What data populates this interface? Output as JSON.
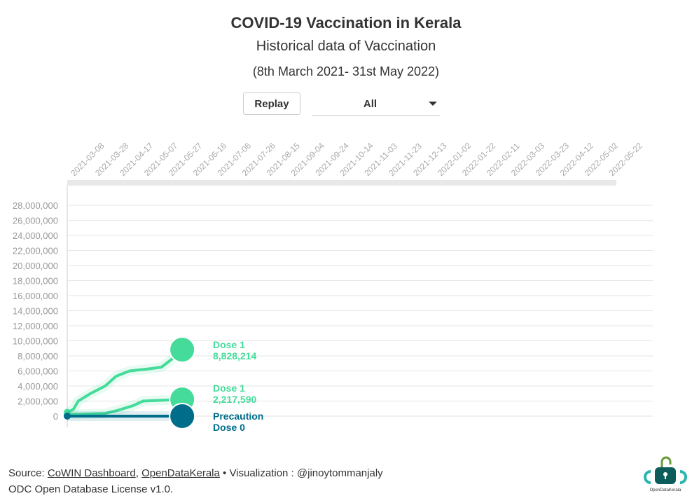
{
  "header": {
    "title": "COVID-19 Vaccination in Kerala",
    "subtitle": "Historical data of Vaccination",
    "range": "(8th March 2021- 31st May 2022)"
  },
  "controls": {
    "replay_label": "Replay",
    "select_value": "All"
  },
  "chart_data": {
    "type": "line",
    "xlim": [
      "2021-03-08",
      "2022-05-31"
    ],
    "x_ticks": [
      "2021-03-08",
      "2021-03-28",
      "2021-04-17",
      "2021-05-07",
      "2021-05-27",
      "2021-06-16",
      "2021-07-06",
      "2021-07-26",
      "2021-08-15",
      "2021-09-04",
      "2021-09-24",
      "2021-10-14",
      "2021-11-03",
      "2021-11-23",
      "2021-12-13",
      "2022-01-02",
      "2022-01-22",
      "2022-02-11",
      "2022-03-03",
      "2022-03-23",
      "2022-04-12",
      "2022-05-02",
      "2022-05-22"
    ],
    "ylim": [
      0,
      28000000
    ],
    "y_ticks": [
      "0",
      "2,000,000",
      "4,000,000",
      "6,000,000",
      "8,000,000",
      "10,000,000",
      "12,000,000",
      "14,000,000",
      "16,000,000",
      "18,000,000",
      "20,000,000",
      "22,000,000",
      "24,000,000",
      "26,000,000",
      "28,000,000"
    ],
    "grid": true,
    "series": [
      {
        "name": "Dose 1",
        "value_label": "8,828,214",
        "color": "#45db9a",
        "points": [
          [
            "2021-03-08",
            500000
          ],
          [
            "2021-03-13",
            900000
          ],
          [
            "2021-03-17",
            2000000
          ],
          [
            "2021-03-27",
            3000000
          ],
          [
            "2021-04-08",
            4000000
          ],
          [
            "2021-04-17",
            5300000
          ],
          [
            "2021-04-28",
            6000000
          ],
          [
            "2021-05-15",
            6300000
          ],
          [
            "2021-05-24",
            6500000
          ],
          [
            "2021-06-01",
            7500000
          ],
          [
            "2021-06-10",
            8828214
          ]
        ]
      },
      {
        "name": "Dose 1",
        "value_label": "2,217,590",
        "color": "#45db9a",
        "points": [
          [
            "2021-03-08",
            200000
          ],
          [
            "2021-04-08",
            350000
          ],
          [
            "2021-04-19",
            800000
          ],
          [
            "2021-05-01",
            1400000
          ],
          [
            "2021-05-09",
            2000000
          ],
          [
            "2021-06-10",
            2217590
          ]
        ]
      },
      {
        "name": "Precaution",
        "value_label": "Dose 0",
        "color": "#006d8a",
        "points": [
          [
            "2021-03-08",
            0
          ],
          [
            "2021-06-10",
            0
          ]
        ]
      }
    ]
  },
  "footer": {
    "source_prefix": "Source: ",
    "link1": "CoWIN Dashboard",
    "sep": ", ",
    "link2": "OpenDataKerala",
    "viz": " • Visualization : @jinoytommanjaly",
    "license": "ODC Open Database License v1.0."
  },
  "logo": {
    "text": "OpenDataKerala"
  }
}
